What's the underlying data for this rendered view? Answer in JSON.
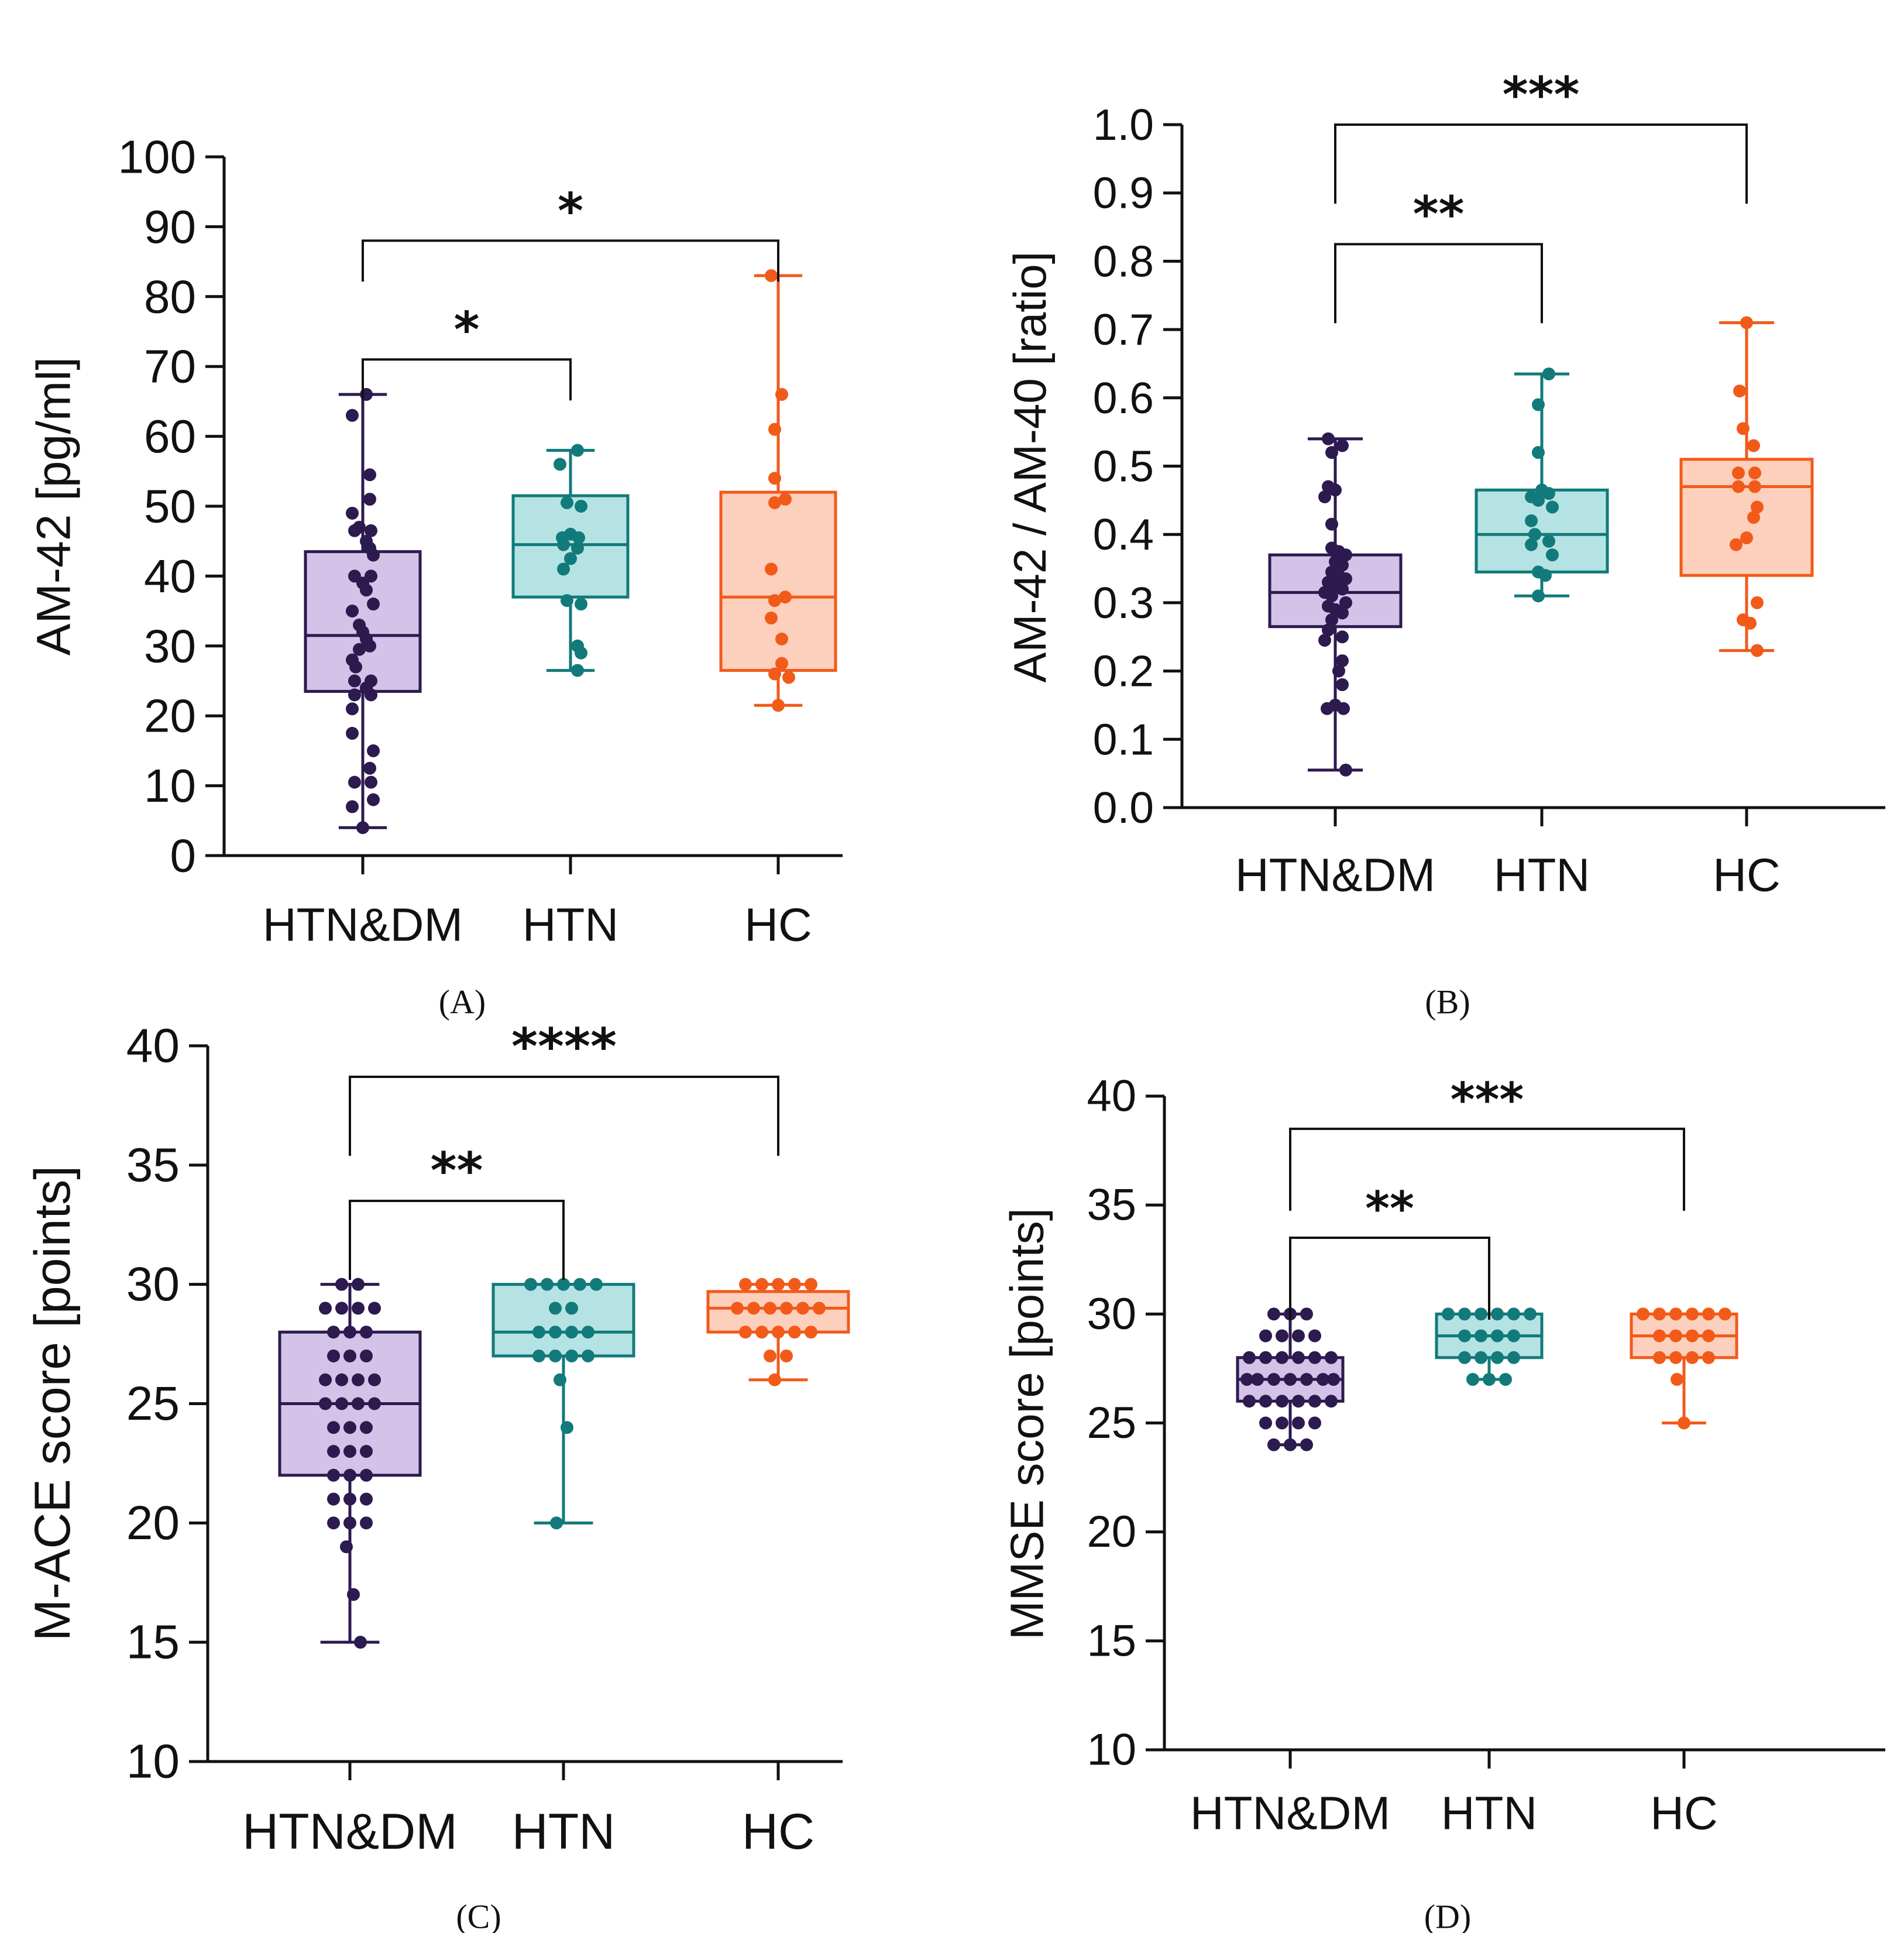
{
  "chart_data": [
    {
      "panel": "A",
      "type": "box",
      "panel_label": "(A)",
      "ylabel": "AM-42 [pg/ml]",
      "ylim": [
        0,
        100
      ],
      "yticks": [
        0,
        10,
        20,
        30,
        40,
        50,
        60,
        70,
        80,
        90,
        100
      ],
      "categories": [
        "HTN&DM",
        "HTN",
        "HC"
      ],
      "series": [
        {
          "name": "HTN&DM",
          "color": "#2d1a4f",
          "fill": "#d3c3e8",
          "min": 4,
          "q1": 23.5,
          "median": 31.5,
          "q3": 43.5,
          "max": 66,
          "points": [
            66,
            63,
            54.5,
            51,
            49,
            47,
            46.5,
            46.5,
            45,
            44,
            43,
            40,
            40,
            39,
            38,
            36,
            35,
            33,
            32,
            31,
            30,
            29.5,
            28,
            27,
            25,
            25,
            24,
            23,
            23,
            21,
            17.5,
            15,
            12.5,
            10.5,
            10.5,
            8,
            7,
            4
          ]
        },
        {
          "name": "HTN",
          "color": "#127a7a",
          "fill": "#b5e3e3",
          "min": 26.5,
          "q1": 37,
          "median": 44.5,
          "q3": 51.5,
          "max": 58,
          "points": [
            58,
            56,
            50.5,
            50,
            46,
            45.5,
            45.5,
            44.5,
            44,
            42.5,
            41,
            36.5,
            36,
            30,
            29,
            26.5
          ]
        },
        {
          "name": "HC",
          "color": "#f25a1a",
          "fill": "#fdd0bd",
          "min": 21.5,
          "q1": 26.5,
          "median": 37,
          "q3": 52,
          "max": 83,
          "points": [
            83,
            66,
            61,
            54,
            51,
            50.5,
            41,
            37,
            36.5,
            34,
            31,
            27.5,
            26,
            25.5,
            21.5
          ]
        }
      ],
      "significance": [
        {
          "from": "HTN&DM",
          "to": "HTN",
          "label": "*",
          "y": 71
        },
        {
          "from": "HTN&DM",
          "to": "HC",
          "label": "*",
          "y": 88
        }
      ]
    },
    {
      "panel": "B",
      "type": "box",
      "panel_label": "(B)",
      "ylabel": "AM-42 / AM-40 [ratio]",
      "ylim": [
        0,
        1
      ],
      "yticks": [
        0.0,
        0.1,
        0.2,
        0.3,
        0.4,
        0.5,
        0.6,
        0.7,
        0.8,
        0.9,
        1.0
      ],
      "yticklabels": [
        "0.0",
        "0.1",
        "0.2",
        "0.3",
        "0.4",
        "0.5",
        "0.6",
        "0.7",
        "0.8",
        "0.9",
        "1.0"
      ],
      "categories": [
        "HTN&DM",
        "HTN",
        "HC"
      ],
      "series": [
        {
          "name": "HTN&DM",
          "color": "#2d1a4f",
          "fill": "#d3c3e8",
          "min": 0.055,
          "q1": 0.265,
          "median": 0.315,
          "q3": 0.37,
          "max": 0.54,
          "points": [
            0.54,
            0.53,
            0.52,
            0.47,
            0.465,
            0.455,
            0.415,
            0.38,
            0.375,
            0.37,
            0.36,
            0.355,
            0.345,
            0.34,
            0.335,
            0.33,
            0.325,
            0.32,
            0.315,
            0.31,
            0.3,
            0.295,
            0.29,
            0.285,
            0.275,
            0.26,
            0.25,
            0.245,
            0.215,
            0.2,
            0.18,
            0.15,
            0.145,
            0.145,
            0.055
          ]
        },
        {
          "name": "HTN",
          "color": "#127a7a",
          "fill": "#b5e3e3",
          "min": 0.31,
          "q1": 0.345,
          "median": 0.4,
          "q3": 0.465,
          "max": 0.635,
          "points": [
            0.635,
            0.59,
            0.52,
            0.465,
            0.46,
            0.455,
            0.45,
            0.44,
            0.42,
            0.4,
            0.39,
            0.385,
            0.37,
            0.345,
            0.34,
            0.31
          ]
        },
        {
          "name": "HC",
          "color": "#f25a1a",
          "fill": "#fdd0bd",
          "min": 0.23,
          "q1": 0.34,
          "median": 0.47,
          "q3": 0.51,
          "max": 0.71,
          "points": [
            0.71,
            0.61,
            0.555,
            0.53,
            0.49,
            0.49,
            0.47,
            0.47,
            0.44,
            0.425,
            0.395,
            0.385,
            0.3,
            0.275,
            0.27,
            0.23
          ]
        }
      ],
      "significance": [
        {
          "from": "HTN&DM",
          "to": "HTN",
          "label": "**",
          "y": 0.825
        },
        {
          "from": "HTN&DM",
          "to": "HC",
          "label": "***",
          "y": 1.0
        }
      ]
    },
    {
      "panel": "C",
      "type": "box",
      "panel_label": "(C)",
      "ylabel": "M-ACE score [points]",
      "ylim": [
        10,
        40
      ],
      "yticks": [
        10,
        15,
        20,
        25,
        30,
        35,
        40
      ],
      "categories": [
        "HTN&DM",
        "HTN",
        "HC"
      ],
      "series": [
        {
          "name": "HTN&DM",
          "color": "#2d1a4f",
          "fill": "#d3c3e8",
          "min": 15,
          "q1": 22,
          "median": 25,
          "q3": 28,
          "max": 30,
          "points": [
            30,
            30,
            29,
            29,
            29,
            29,
            28,
            28,
            28,
            27,
            27,
            27,
            26,
            26,
            26,
            26,
            25,
            25,
            25,
            25,
            24,
            24,
            24,
            23,
            23,
            23,
            22,
            22,
            22,
            21,
            21,
            21,
            20,
            20,
            20,
            19,
            17,
            15
          ]
        },
        {
          "name": "HTN",
          "color": "#127a7a",
          "fill": "#b5e3e3",
          "min": 20,
          "q1": 27,
          "median": 28,
          "q3": 30,
          "max": 30,
          "points": [
            30,
            30,
            30,
            30,
            30,
            29,
            29,
            28,
            28,
            28,
            28,
            27,
            27,
            27,
            27,
            26,
            24,
            20
          ]
        },
        {
          "name": "HC",
          "color": "#f25a1a",
          "fill": "#fdd0bd",
          "min": 26,
          "q1": 28,
          "median": 29,
          "q3": 29.7,
          "max": 30,
          "points": [
            30,
            30,
            30,
            30,
            30,
            29,
            29,
            29,
            29,
            29,
            29,
            28,
            28,
            28,
            28,
            28,
            27,
            27,
            26
          ]
        }
      ],
      "significance": [
        {
          "from": "HTN&DM",
          "to": "HTN",
          "label": "**",
          "y": 33.5
        },
        {
          "from": "HTN&DM",
          "to": "HC",
          "label": "****",
          "y": 38.7
        }
      ]
    },
    {
      "panel": "D",
      "type": "box",
      "panel_label": "(D)",
      "ylabel": "MMSE score [points]",
      "ylim": [
        10,
        40
      ],
      "yticks": [
        10,
        15,
        20,
        25,
        30,
        35,
        40
      ],
      "categories": [
        "HTN&DM",
        "HTN",
        "HC"
      ],
      "series": [
        {
          "name": "HTN&DM",
          "color": "#2d1a4f",
          "fill": "#d3c3e8",
          "min": 24,
          "q1": 26,
          "median": 27,
          "q3": 28,
          "max": 30,
          "points": [
            30,
            30,
            30,
            29,
            29,
            29,
            29,
            28,
            28,
            28,
            28,
            28,
            28,
            27,
            27,
            27,
            27,
            27,
            27,
            27,
            26,
            26,
            26,
            26,
            26,
            26,
            25,
            25,
            25,
            25,
            24,
            24,
            24
          ]
        },
        {
          "name": "HTN",
          "color": "#127a7a",
          "fill": "#b5e3e3",
          "min": 27,
          "q1": 28,
          "median": 29,
          "q3": 30,
          "max": 30,
          "points": [
            30,
            30,
            30,
            30,
            30,
            30,
            29,
            29,
            29,
            29,
            28,
            28,
            28,
            28,
            27,
            27,
            27
          ]
        },
        {
          "name": "HC",
          "color": "#f25a1a",
          "fill": "#fdd0bd",
          "min": 25,
          "q1": 28,
          "median": 29,
          "q3": 30,
          "max": 30,
          "points": [
            30,
            30,
            30,
            30,
            30,
            30,
            29,
            29,
            29,
            29,
            28,
            28,
            28,
            28,
            27,
            25
          ]
        }
      ],
      "significance": [
        {
          "from": "HTN&DM",
          "to": "HTN",
          "label": "**",
          "y": 33.5
        },
        {
          "from": "HTN&DM",
          "to": "HC",
          "label": "***",
          "y": 38.5
        }
      ]
    }
  ]
}
